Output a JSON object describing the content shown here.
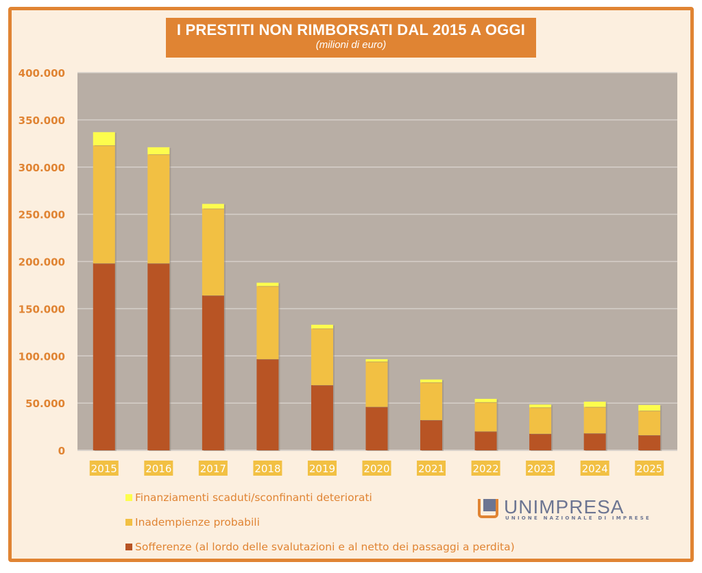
{
  "chart_data": {
    "type": "bar",
    "stacked": true,
    "title": "I PRESTITI NON RIMBORSATI DAL 2015 A OGGI",
    "subtitle": "(milioni di euro)",
    "xlabel": "",
    "ylabel": "",
    "ylim": [
      0,
      400000
    ],
    "yticks": [
      0,
      50000,
      100000,
      150000,
      200000,
      250000,
      300000,
      350000,
      400000
    ],
    "ytick_labels": [
      "0",
      "50.000",
      "100.000",
      "150.000",
      "200.000",
      "250.000",
      "300.000",
      "350.000",
      "400.000"
    ],
    "grid": true,
    "legend_position": "bottom-left",
    "categories": [
      "2015",
      "2016",
      "2017",
      "2018",
      "2019",
      "2020",
      "2021",
      "2022",
      "2023",
      "2024",
      "2025"
    ],
    "series": [
      {
        "name": "Sofferenze (al lordo delle svalutazioni e al netto dei passaggi a perdita)",
        "color": "#b85424",
        "values": [
          198000,
          198000,
          164000,
          96500,
          69000,
          46000,
          32000,
          20000,
          17500,
          18000,
          16000
        ]
      },
      {
        "name": "Inadempienze probabili",
        "color": "#f2c043",
        "values": [
          125000,
          115500,
          92000,
          77500,
          60000,
          48000,
          40000,
          31000,
          28000,
          28000,
          26000
        ]
      },
      {
        "name": "Finanziamenti scaduti/sconfinanti deteriorati",
        "color": "#fdfd4d",
        "values": [
          14000,
          7500,
          5000,
          3500,
          4000,
          2500,
          3000,
          3500,
          3000,
          5500,
          6000
        ]
      }
    ]
  },
  "legend": [
    {
      "label": "Finanziamenti scaduti/sconfinanti deteriorati",
      "color": "#fdfd4d"
    },
    {
      "label": "Inadempienze probabili",
      "color": "#f2c043"
    },
    {
      "label": "Sofferenze (al lordo delle svalutazioni e al netto dei passaggi a perdita)",
      "color": "#b85424"
    }
  ],
  "logo": {
    "name": "UNIMPRESA",
    "tagline": "UNIONE NAZIONALE DI IMPRESE"
  },
  "colors": {
    "accent": "#e08433",
    "plot_background": "#b8aea5",
    "page_background": "#fcefdf"
  }
}
